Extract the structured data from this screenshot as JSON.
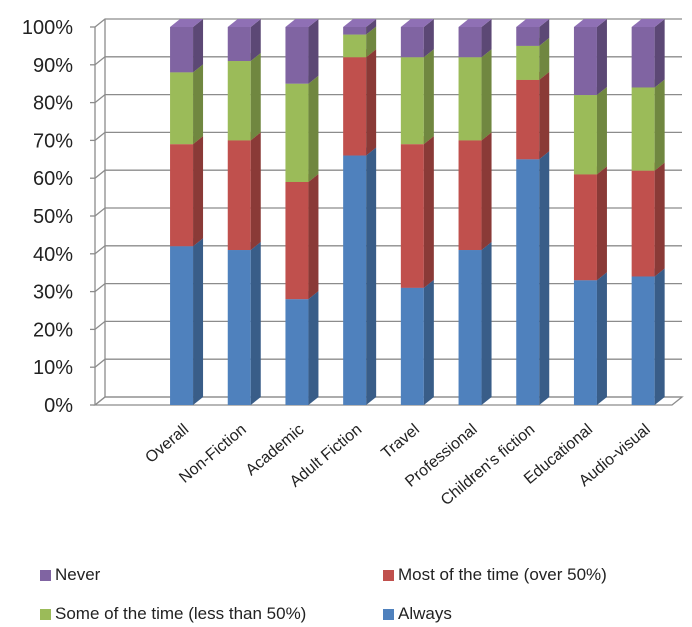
{
  "chart_data": {
    "type": "bar",
    "stacked": true,
    "three_d": true,
    "categories": [
      "Overall",
      "Non-Fiction",
      "Academic",
      "Adult Fiction",
      "Travel",
      "Professional",
      "Children's fiction",
      "Educational",
      "Audio-visual"
    ],
    "yticks": [
      "0%",
      "10%",
      "20%",
      "30%",
      "40%",
      "50%",
      "60%",
      "70%",
      "80%",
      "90%",
      "100%"
    ],
    "ylim": [
      0,
      100
    ],
    "grid": true,
    "legend_position": "bottom",
    "series": [
      {
        "name": "Always",
        "color": "#4f81bd",
        "values": [
          42,
          41,
          28,
          66,
          31,
          41,
          65,
          33,
          34
        ]
      },
      {
        "name": "Most of the time (over 50%)",
        "color": "#c0504d",
        "values": [
          27,
          29,
          31,
          26,
          38,
          29,
          21,
          28,
          28
        ]
      },
      {
        "name": "Some of the time (less than 50%)",
        "color": "#9bbb59",
        "values": [
          19,
          21,
          26,
          6,
          23,
          22,
          9,
          21,
          22
        ]
      },
      {
        "name": "Never",
        "color": "#8064a2",
        "values": [
          12,
          9,
          15,
          2,
          8,
          8,
          5,
          18,
          16
        ]
      }
    ]
  }
}
